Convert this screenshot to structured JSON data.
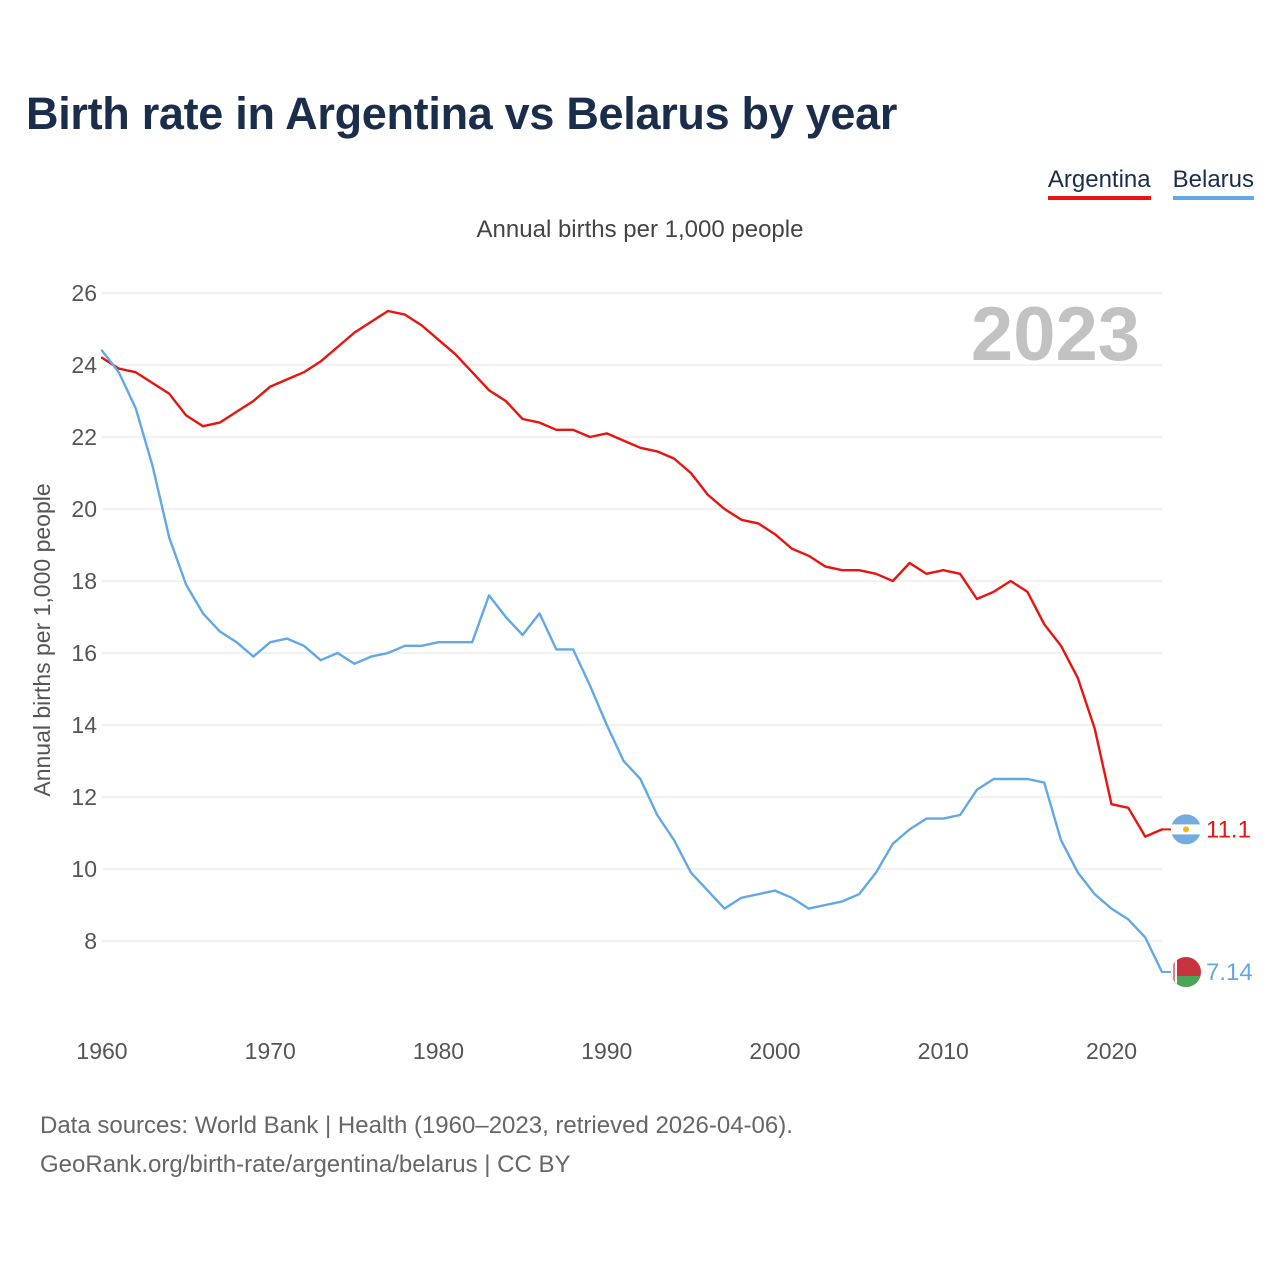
{
  "header": {
    "title": "Birth rate in Argentina vs Belarus by year",
    "subtitle": "Annual births per 1,000 people"
  },
  "legend": {
    "argentina": "Argentina",
    "belarus": "Belarus"
  },
  "footer": {
    "source_line1": "Data sources: World Bank | Health (1960–2023, retrieved 2026-04-06).",
    "source_line2": "GeoRank.org/birth-rate/argentina/belarus | CC BY"
  },
  "colors": {
    "argentina": "#e8140f",
    "belarus": "#62a8e5",
    "title": "#1a2e4c",
    "grid": "#e6e6e6"
  },
  "chart_data": {
    "type": "line",
    "title": "Birth rate in Argentina vs Belarus by year",
    "xlabel": "",
    "ylabel": "Annual births per 1,000 people",
    "xlim": [
      1960,
      2023
    ],
    "ylim": [
      6,
      26
    ],
    "x_ticks": [
      1960,
      1970,
      1980,
      1990,
      2000,
      2010,
      2020
    ],
    "y_ticks": [
      8,
      10,
      12,
      14,
      16,
      18,
      20,
      22,
      24,
      26
    ],
    "grid": true,
    "watermark_year": "2023",
    "x": [
      1960,
      1961,
      1962,
      1963,
      1964,
      1965,
      1966,
      1967,
      1968,
      1969,
      1970,
      1971,
      1972,
      1973,
      1974,
      1975,
      1976,
      1977,
      1978,
      1979,
      1980,
      1981,
      1982,
      1983,
      1984,
      1985,
      1986,
      1987,
      1988,
      1989,
      1990,
      1991,
      1992,
      1993,
      1994,
      1995,
      1996,
      1997,
      1998,
      1999,
      2000,
      2001,
      2002,
      2003,
      2004,
      2005,
      2006,
      2007,
      2008,
      2009,
      2010,
      2011,
      2012,
      2013,
      2014,
      2015,
      2016,
      2017,
      2018,
      2019,
      2020,
      2021,
      2022,
      2023
    ],
    "series": [
      {
        "name": "Argentina",
        "color": "#e8140f",
        "end_label": "11.1",
        "values": [
          24.2,
          23.9,
          23.8,
          23.5,
          23.2,
          22.6,
          22.3,
          22.4,
          22.7,
          23.0,
          23.4,
          23.6,
          23.8,
          24.1,
          24.5,
          24.9,
          25.2,
          25.5,
          25.4,
          25.1,
          24.7,
          24.3,
          23.8,
          23.3,
          23.0,
          22.5,
          22.4,
          22.2,
          22.2,
          22.0,
          22.1,
          21.9,
          21.7,
          21.6,
          21.4,
          21.0,
          20.4,
          20.0,
          19.7,
          19.6,
          19.3,
          18.9,
          18.7,
          18.4,
          18.3,
          18.3,
          18.2,
          18.0,
          18.5,
          18.2,
          18.3,
          18.2,
          17.5,
          17.7,
          18.0,
          17.7,
          16.8,
          16.2,
          15.3,
          13.9,
          11.8,
          11.7,
          10.9,
          11.1
        ]
      },
      {
        "name": "Belarus",
        "color": "#62a8e5",
        "end_label": "7.14",
        "values": [
          24.4,
          23.8,
          22.8,
          21.2,
          19.2,
          17.9,
          17.1,
          16.6,
          16.3,
          15.9,
          16.3,
          16.4,
          16.2,
          15.8,
          16.0,
          15.7,
          15.9,
          16.0,
          16.2,
          16.2,
          16.3,
          16.3,
          16.3,
          17.6,
          17.0,
          16.5,
          17.1,
          16.1,
          16.1,
          15.1,
          14.0,
          13.0,
          12.5,
          11.5,
          10.8,
          9.9,
          9.4,
          8.9,
          9.2,
          9.3,
          9.4,
          9.2,
          8.9,
          9.0,
          9.1,
          9.3,
          9.9,
          10.7,
          11.1,
          11.4,
          11.4,
          11.5,
          12.2,
          12.5,
          12.5,
          12.5,
          12.4,
          10.8,
          9.9,
          9.3,
          8.9,
          8.6,
          8.1,
          7.14
        ]
      }
    ]
  }
}
